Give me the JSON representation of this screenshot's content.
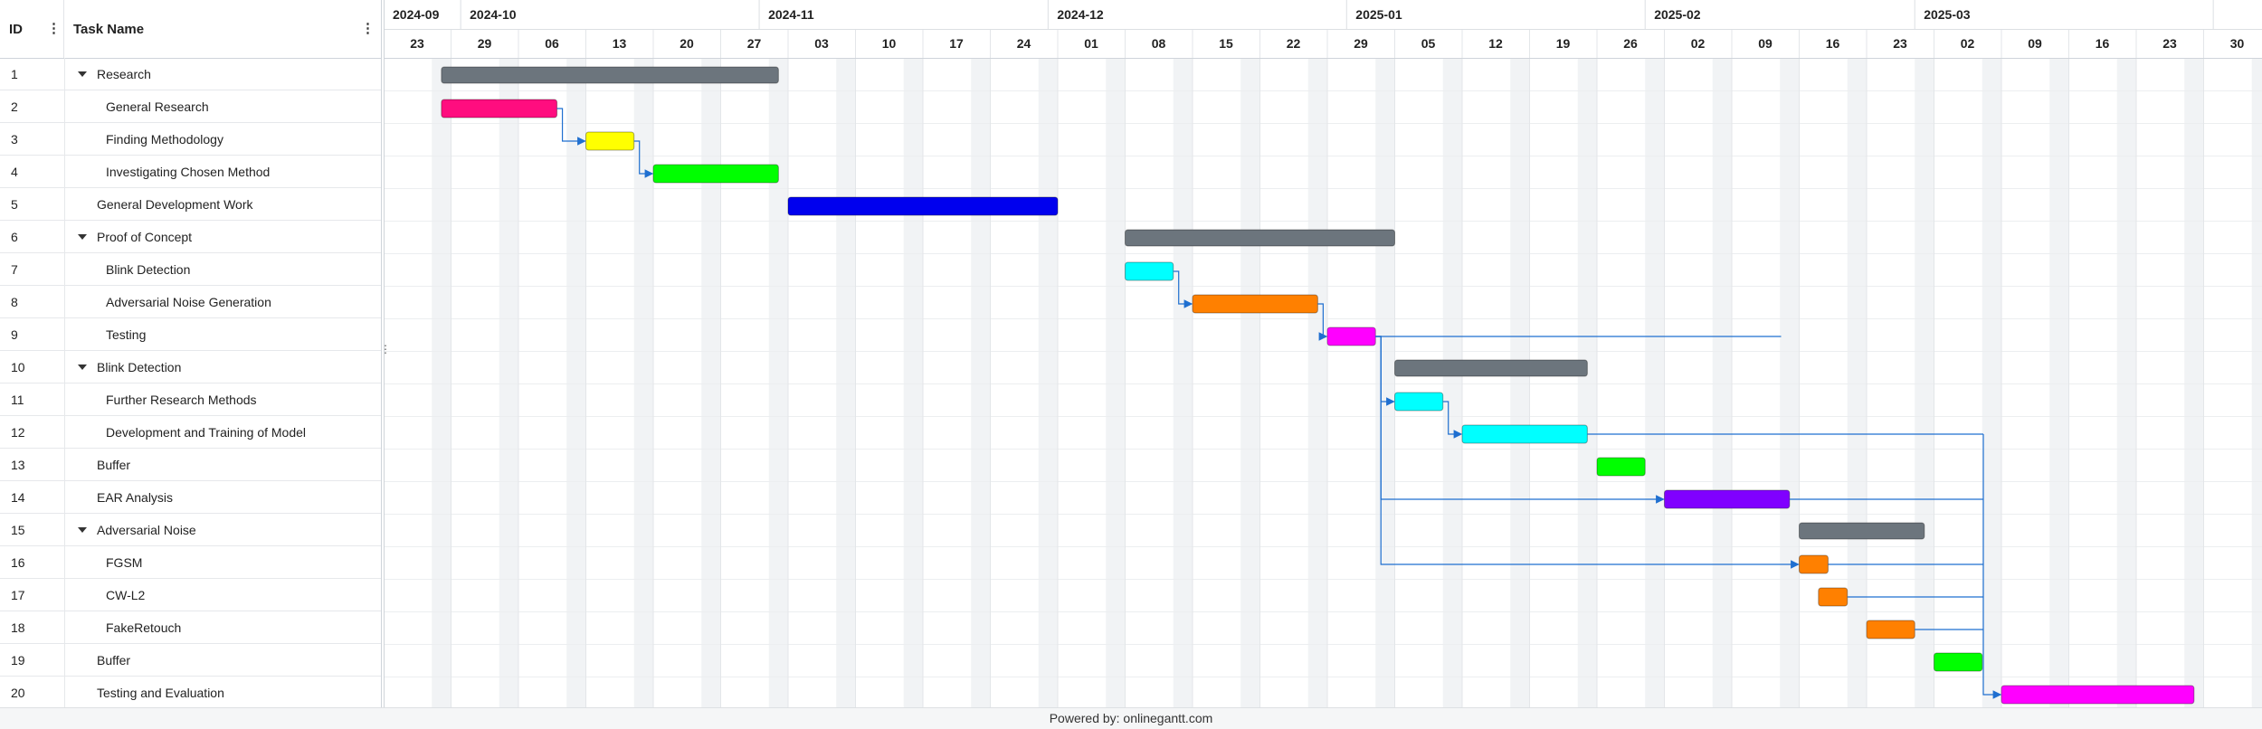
{
  "grid": {
    "id_header": "ID",
    "name_header": "Task Name",
    "menu_glyph": "⋮",
    "resizer_glyph": "⋮"
  },
  "timeline": {
    "months": [
      "2024-09",
      "2024-10",
      "2024-11",
      "2024-12",
      "2025-01",
      "2025-02",
      "2025-03"
    ],
    "weeks": [
      "23",
      "29",
      "06",
      "13",
      "20",
      "27",
      "03",
      "10",
      "17",
      "24",
      "01",
      "08",
      "15",
      "22",
      "29",
      "05",
      "12",
      "19",
      "26",
      "02",
      "09",
      "16",
      "23",
      "02",
      "09",
      "16",
      "23",
      "30"
    ]
  },
  "tasks": [
    {
      "id": "1",
      "name": "Research",
      "level": 0,
      "group": true,
      "start": "2024-09-29",
      "end": "2024-11-03",
      "color": "#6c757d"
    },
    {
      "id": "2",
      "name": "General Research",
      "level": 1,
      "group": false,
      "start": "2024-09-29",
      "end": "2024-10-11",
      "color": "#ff0d7f"
    },
    {
      "id": "3",
      "name": "Finding Methodology",
      "level": 1,
      "group": false,
      "start": "2024-10-14",
      "end": "2024-10-19",
      "color": "#ffff00",
      "dep": "2"
    },
    {
      "id": "4",
      "name": "Investigating Chosen Method",
      "level": 1,
      "group": false,
      "start": "2024-10-21",
      "end": "2024-11-03",
      "color": "#00ff00",
      "dep": "3"
    },
    {
      "id": "5",
      "name": "General Development Work",
      "level": 0,
      "group": false,
      "start": "2024-11-04",
      "end": "2024-12-02",
      "color": "#0000ee"
    },
    {
      "id": "6",
      "name": "Proof of Concept",
      "level": 0,
      "group": true,
      "start": "2024-12-09",
      "end": "2025-01-06",
      "color": "#6c757d"
    },
    {
      "id": "7",
      "name": "Blink Detection",
      "level": 1,
      "group": false,
      "start": "2024-12-09",
      "end": "2024-12-14",
      "color": "#00ffff"
    },
    {
      "id": "8",
      "name": "Adversarial Noise Generation",
      "level": 1,
      "group": false,
      "start": "2024-12-16",
      "end": "2024-12-29",
      "color": "#ff8000",
      "dep": "7"
    },
    {
      "id": "9",
      "name": "Testing",
      "level": 1,
      "group": false,
      "start": "2024-12-30",
      "end": "2025-01-04",
      "color": "#ff00ff",
      "dep": "8"
    },
    {
      "id": "10",
      "name": "Blink Detection",
      "level": 0,
      "group": true,
      "start": "2025-01-06",
      "end": "2025-01-26",
      "color": "#6c757d"
    },
    {
      "id": "11",
      "name": "Further Research Methods",
      "level": 1,
      "group": false,
      "start": "2025-01-06",
      "end": "2025-01-11",
      "color": "#00ffff",
      "dep": "9"
    },
    {
      "id": "12",
      "name": "Development and Training of Model",
      "level": 1,
      "group": false,
      "start": "2025-01-13",
      "end": "2025-01-26",
      "color": "#00ffff",
      "dep": "11"
    },
    {
      "id": "13",
      "name": "Buffer",
      "level": 0,
      "group": false,
      "start": "2025-01-27",
      "end": "2025-02-01",
      "color": "#00ff00"
    },
    {
      "id": "14",
      "name": "EAR Analysis",
      "level": 0,
      "group": false,
      "start": "2025-02-03",
      "end": "2025-02-16",
      "color": "#8000ff",
      "dep": "9"
    },
    {
      "id": "15",
      "name": "Adversarial Noise",
      "level": 0,
      "group": true,
      "start": "2025-02-17",
      "end": "2025-03-02",
      "color": "#6c757d"
    },
    {
      "id": "16",
      "name": "FGSM",
      "level": 1,
      "group": false,
      "start": "2025-02-17",
      "end": "2025-02-20",
      "color": "#ff8000",
      "dep": "9"
    },
    {
      "id": "17",
      "name": "CW-L2",
      "level": 1,
      "group": false,
      "start": "2025-02-19",
      "end": "2025-02-22",
      "color": "#ff8000"
    },
    {
      "id": "18",
      "name": "FakeRetouch",
      "level": 1,
      "group": false,
      "start": "2025-02-24",
      "end": "2025-03-01",
      "color": "#ff8000"
    },
    {
      "id": "19",
      "name": "Buffer",
      "level": 0,
      "group": false,
      "start": "2025-03-03",
      "end": "2025-03-08",
      "color": "#00ff00"
    },
    {
      "id": "20",
      "name": "Testing and Evaluation",
      "level": 0,
      "group": false,
      "start": "2025-03-10",
      "end": "2025-03-30",
      "color": "#ff00ff",
      "deps_multi": [
        "12",
        "14",
        "16",
        "17",
        "18"
      ]
    }
  ],
  "footer": {
    "text": "Powered by: onlinegantt.com"
  }
}
